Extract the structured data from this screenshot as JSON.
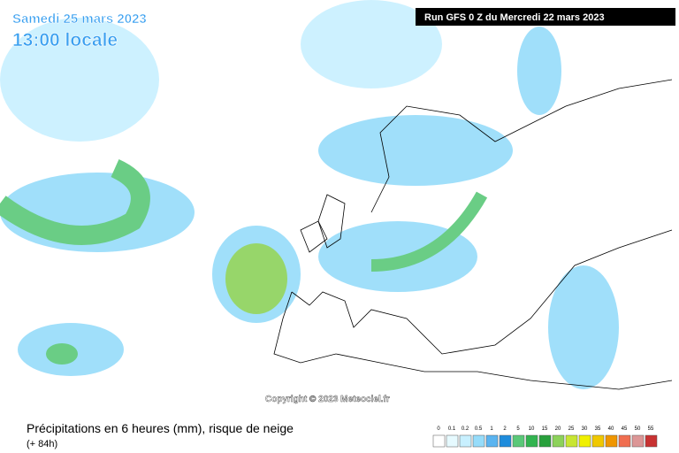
{
  "header": {
    "date": "Samedi 25 mars 2023",
    "time": "13:00 locale",
    "run": "Run GFS 0 Z du Mercredi 22 mars 2023"
  },
  "copyright": "Copyright © 2023 Meteociel.fr",
  "footer": {
    "title": "Précipitations en 6 heures (mm), risque de neige",
    "lead": "(+ 84h)"
  },
  "legend": {
    "ticks": [
      0,
      0.1,
      0.2,
      0.5,
      1,
      2,
      5,
      10,
      15,
      20,
      25,
      30,
      35,
      40,
      45,
      50,
      55
    ],
    "colors": [
      "#ffffff",
      "#e6faff",
      "#c8f0ff",
      "#96dcfa",
      "#5ab4f0",
      "#1e8cdc",
      "#5ac878",
      "#32b450",
      "#28a03c",
      "#8cd25a",
      "#c8e632",
      "#f0f000",
      "#f0c800",
      "#f09600",
      "#f06e50",
      "#dc9696",
      "#c83232"
    ]
  }
}
